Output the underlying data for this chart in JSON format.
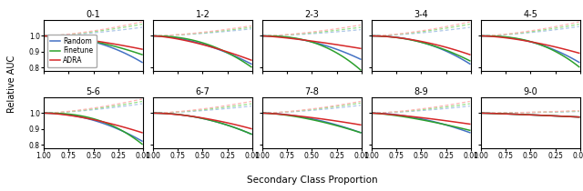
{
  "titles_row1": [
    "0-1",
    "1-2",
    "2-3",
    "3-4",
    "4-5"
  ],
  "titles_row2": [
    "5-6",
    "6-7",
    "7-8",
    "8-9",
    "9-0"
  ],
  "ylabel": "Relative AUC",
  "xlabel": "Secondary Class Proportion",
  "legend_labels": [
    "Random",
    "Finetune",
    "ADRA"
  ],
  "colors": {
    "Random": "#4472c4",
    "Finetune": "#2ca02c",
    "ADRA": "#d62728"
  },
  "dashed_colors": {
    "Random": "#aec7e8",
    "Finetune": "#98df8a",
    "ADRA": "#ffb3b3"
  },
  "n_points": 80,
  "ylim_all": [
    0.78,
    1.1
  ],
  "yticks": [
    0.8,
    0.9,
    1.0
  ],
  "solid_end": {
    "0-1": {
      "Random": 0.83,
      "Finetune": 0.88,
      "ADRA": 0.915
    },
    "1-2": {
      "Random": 0.82,
      "Finetune": 0.8,
      "ADRA": 0.845
    },
    "2-3": {
      "Random": 0.85,
      "Finetune": 0.78,
      "ADRA": 0.92
    },
    "3-4": {
      "Random": 0.82,
      "Finetune": 0.84,
      "ADRA": 0.88
    },
    "4-5": {
      "Random": 0.83,
      "Finetune": 0.8,
      "ADRA": 0.89
    },
    "5-6": {
      "Random": 0.82,
      "Finetune": 0.8,
      "ADRA": 0.875
    },
    "6-7": {
      "Random": 0.865,
      "Finetune": 0.865,
      "ADRA": 0.9
    },
    "7-8": {
      "Random": 0.875,
      "Finetune": 0.875,
      "ADRA": 0.925
    },
    "8-9": {
      "Random": 0.875,
      "Finetune": 0.89,
      "ADRA": 0.93
    },
    "9-0": {
      "Random": 0.975,
      "Finetune": 0.975,
      "ADRA": 0.975
    }
  },
  "solid_shape": {
    "0-1": {
      "Random": 2.2,
      "Finetune": 1.8,
      "ADRA": 1.5
    },
    "1-2": {
      "Random": 1.8,
      "Finetune": 2.2,
      "ADRA": 1.5
    },
    "2-3": {
      "Random": 2.0,
      "Finetune": 2.5,
      "ADRA": 1.3
    },
    "3-4": {
      "Random": 2.2,
      "Finetune": 2.0,
      "ADRA": 1.8
    },
    "4-5": {
      "Random": 2.2,
      "Finetune": 2.5,
      "ADRA": 1.6
    },
    "5-6": {
      "Random": 2.0,
      "Finetune": 2.5,
      "ADRA": 1.6
    },
    "6-7": {
      "Random": 2.0,
      "Finetune": 2.0,
      "ADRA": 1.7
    },
    "7-8": {
      "Random": 1.8,
      "Finetune": 1.6,
      "ADRA": 1.4
    },
    "8-9": {
      "Random": 1.8,
      "Finetune": 1.4,
      "ADRA": 1.3
    },
    "9-0": {
      "Random": 1.2,
      "Finetune": 1.2,
      "ADRA": 1.2
    }
  },
  "dashed_end": {
    "0-1": {
      "Random": 1.055,
      "Finetune": 1.075,
      "ADRA": 1.09
    },
    "1-2": {
      "Random": 1.045,
      "Finetune": 1.055,
      "ADRA": 1.065
    },
    "2-3": {
      "Random": 1.04,
      "Finetune": 1.055,
      "ADRA": 1.07
    },
    "3-4": {
      "Random": 1.055,
      "Finetune": 1.075,
      "ADRA": 1.09
    },
    "4-5": {
      "Random": 1.06,
      "Finetune": 1.075,
      "ADRA": 1.09
    },
    "5-6": {
      "Random": 1.06,
      "Finetune": 1.075,
      "ADRA": 1.09
    },
    "6-7": {
      "Random": 1.045,
      "Finetune": 1.06,
      "ADRA": 1.075
    },
    "7-8": {
      "Random": 1.05,
      "Finetune": 1.065,
      "ADRA": 1.075
    },
    "8-9": {
      "Random": 1.045,
      "Finetune": 1.06,
      "ADRA": 1.075
    },
    "9-0": {
      "Random": 1.01,
      "Finetune": 1.013,
      "ADRA": 1.016
    }
  },
  "dashed_shape": {
    "0-1": {
      "Random": 1.5,
      "Finetune": 1.5,
      "ADRA": 1.5
    },
    "1-2": {
      "Random": 1.5,
      "Finetune": 1.5,
      "ADRA": 1.5
    },
    "2-3": {
      "Random": 1.5,
      "Finetune": 1.5,
      "ADRA": 1.5
    },
    "3-4": {
      "Random": 1.5,
      "Finetune": 1.5,
      "ADRA": 1.5
    },
    "4-5": {
      "Random": 1.5,
      "Finetune": 1.5,
      "ADRA": 1.5
    },
    "5-6": {
      "Random": 1.5,
      "Finetune": 1.5,
      "ADRA": 1.5
    },
    "6-7": {
      "Random": 1.5,
      "Finetune": 1.5,
      "ADRA": 1.5
    },
    "7-8": {
      "Random": 1.5,
      "Finetune": 1.5,
      "ADRA": 1.5
    },
    "8-9": {
      "Random": 1.5,
      "Finetune": 1.5,
      "ADRA": 1.5
    },
    "9-0": {
      "Random": 1.5,
      "Finetune": 1.5,
      "ADRA": 1.5
    }
  }
}
